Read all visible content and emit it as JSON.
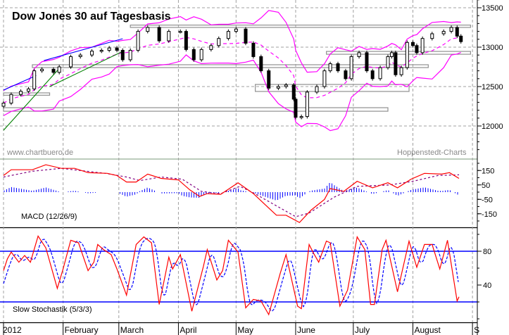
{
  "chart_data": [
    {
      "type": "candlestick",
      "title": "Dow Jones 30 auf Tagesbasis",
      "watermark_left": "www.chartbuero.de",
      "watermark_right": "Hoppenstedt-Charts",
      "year": "2012",
      "x_tick_labels": [
        "2012",
        "February",
        "March",
        "April",
        "May",
        "June",
        "July",
        "August",
        "S"
      ],
      "month_starts": [
        "2012-01-01",
        "2012-02-01",
        "2012-03-01",
        "2012-04-01",
        "2012-05-01",
        "2012-06-01",
        "2012-07-01",
        "2012-08-01",
        "2012-09-01"
      ],
      "y_ticks": [
        12000,
        12500,
        13000,
        13500
      ],
      "y_tick_labels": [
        "12000",
        "12500",
        "13000",
        "13500"
      ],
      "ylim": [
        11600,
        13600
      ],
      "xlim": [
        "2012-01-01",
        "2012-09-03"
      ],
      "grid": true,
      "bollinger_bands": true,
      "colors": {
        "bands": "#ff00ff",
        "uptrend_line": "#0000ff",
        "support_line": "#008000",
        "zones": "#909090",
        "grid": "#a0a0a0"
      },
      "closes": [
        [
          "2012-01-01",
          12290
        ],
        [
          "2012-01-05",
          12400
        ],
        [
          "2012-01-10",
          12440
        ],
        [
          "2012-01-14",
          12470
        ],
        [
          "2012-01-17",
          12700
        ],
        [
          "2012-01-21",
          12720
        ],
        [
          "2012-01-27",
          12680
        ],
        [
          "2012-01-30",
          12750
        ],
        [
          "2012-02-05",
          12880
        ],
        [
          "2012-02-10",
          12900
        ],
        [
          "2012-02-16",
          12950
        ],
        [
          "2012-02-21",
          12960
        ],
        [
          "2012-02-25",
          12990
        ],
        [
          "2012-02-29",
          12960
        ],
        [
          "2012-03-03",
          12840
        ],
        [
          "2012-03-07",
          12960
        ],
        [
          "2012-03-11",
          13200
        ],
        [
          "2012-03-16",
          13250
        ],
        [
          "2012-03-22",
          13080
        ],
        [
          "2012-03-27",
          13200
        ],
        [
          "2012-04-02",
          13200
        ],
        [
          "2012-04-05",
          12970
        ],
        [
          "2012-04-09",
          12840
        ],
        [
          "2012-04-13",
          12970
        ],
        [
          "2012-04-18",
          13020
        ],
        [
          "2012-04-22",
          13110
        ],
        [
          "2012-04-27",
          13200
        ],
        [
          "2012-05-01",
          13230
        ],
        [
          "2012-05-06",
          13050
        ],
        [
          "2012-05-10",
          12880
        ],
        [
          "2012-05-14",
          12700
        ],
        [
          "2012-05-18",
          12480
        ],
        [
          "2012-05-23",
          12500
        ],
        [
          "2012-05-27",
          12520
        ],
        [
          "2012-05-31",
          12340
        ],
        [
          "2012-06-01",
          12110
        ],
        [
          "2012-06-04",
          12120
        ],
        [
          "2012-06-07",
          12430
        ],
        [
          "2012-06-12",
          12500
        ],
        [
          "2012-06-16",
          12700
        ],
        [
          "2012-06-19",
          12790
        ],
        [
          "2012-06-23",
          12700
        ],
        [
          "2012-06-27",
          12600
        ],
        [
          "2012-06-30",
          12880
        ],
        [
          "2012-07-04",
          12930
        ],
        [
          "2012-07-08",
          12700
        ],
        [
          "2012-07-11",
          12600
        ],
        [
          "2012-07-15",
          12740
        ],
        [
          "2012-07-19",
          12880
        ],
        [
          "2012-07-21",
          12930
        ],
        [
          "2012-07-23",
          12650
        ],
        [
          "2012-07-26",
          12740
        ],
        [
          "2012-07-29",
          13060
        ],
        [
          "2012-08-01",
          13020
        ],
        [
          "2012-08-03",
          12930
        ],
        [
          "2012-08-06",
          13110
        ],
        [
          "2012-08-11",
          13170
        ],
        [
          "2012-08-17",
          13200
        ],
        [
          "2012-08-21",
          13250
        ],
        [
          "2012-08-24",
          13140
        ],
        [
          "2012-08-26",
          13070
        ]
      ],
      "trendlines": [
        {
          "color": "blue",
          "from": [
            "2012-01-01",
            12455
          ],
          "to": [
            "2012-01-18",
            12640
          ]
        },
        {
          "color": "blue",
          "from": [
            "2012-01-22",
            12830
          ],
          "to": [
            "2012-03-03",
            13107
          ]
        },
        {
          "color": "green",
          "from": [
            "2012-01-01",
            11945
          ],
          "to": [
            "2012-01-30",
            12730
          ]
        },
        {
          "color": "green",
          "from": [
            "2012-01-25",
            12500
          ],
          "to": [
            "2012-03-03",
            12946
          ]
        }
      ],
      "zones": [
        {
          "from": "2012-03-07",
          "to": "2012-08-31",
          "low": 13250,
          "high": 13280
        },
        {
          "from": "2012-06-17",
          "to": "2012-08-31",
          "low": 12910,
          "high": 12946
        },
        {
          "from": "2012-01-16",
          "to": "2012-08-09",
          "low": 12741,
          "high": 12777
        },
        {
          "from": "2012-05-11",
          "to": "2012-07-30",
          "low": 12438,
          "high": 12527
        },
        {
          "from": "2012-01-01",
          "to": "2012-07-19",
          "low": 12187,
          "high": 12232
        },
        {
          "from": "2012-01-01",
          "to": "2012-01-25",
          "low": 12390,
          "high": 12420
        }
      ]
    },
    {
      "type": "line",
      "label": "MACD (12/26/9)",
      "y_ticks": [
        150,
        50,
        -50,
        -150
      ],
      "y_tick_labels": [
        "150",
        "50",
        "-50",
        "-150"
      ],
      "colors": {
        "macd": "#ff0000",
        "signal": "#800080",
        "histogram": "#0000ff"
      },
      "macd": [
        [
          "2012-01-01",
          115
        ],
        [
          "2012-01-05",
          155
        ],
        [
          "2012-01-16",
          155
        ],
        [
          "2012-01-23",
          190
        ],
        [
          "2012-01-31",
          165
        ],
        [
          "2012-02-07",
          165
        ],
        [
          "2012-02-14",
          135
        ],
        [
          "2012-02-24",
          130
        ],
        [
          "2012-02-29",
          115
        ],
        [
          "2012-03-05",
          70
        ],
        [
          "2012-03-10",
          70
        ],
        [
          "2012-03-16",
          125
        ],
        [
          "2012-03-23",
          95
        ],
        [
          "2012-04-01",
          85
        ],
        [
          "2012-04-07",
          15
        ],
        [
          "2012-04-12",
          -30
        ],
        [
          "2012-04-16",
          -10
        ],
        [
          "2012-04-23",
          -15
        ],
        [
          "2012-05-02",
          65
        ],
        [
          "2012-05-10",
          -10
        ],
        [
          "2012-05-18",
          -110
        ],
        [
          "2012-05-22",
          -160
        ],
        [
          "2012-05-27",
          -160
        ],
        [
          "2012-06-03",
          -210
        ],
        [
          "2012-06-09",
          -125
        ],
        [
          "2012-06-16",
          -50
        ],
        [
          "2012-06-19",
          25
        ],
        [
          "2012-06-26",
          5
        ],
        [
          "2012-07-03",
          75
        ],
        [
          "2012-07-11",
          30
        ],
        [
          "2012-07-19",
          65
        ],
        [
          "2012-07-24",
          30
        ],
        [
          "2012-07-31",
          90
        ],
        [
          "2012-08-07",
          130
        ],
        [
          "2012-08-16",
          125
        ],
        [
          "2012-08-20",
          135
        ],
        [
          "2012-08-25",
          95
        ]
      ],
      "signal": [
        [
          "2012-01-01",
          105
        ],
        [
          "2012-01-16",
          145
        ],
        [
          "2012-01-31",
          165
        ],
        [
          "2012-02-23",
          130
        ],
        [
          "2012-03-05",
          105
        ],
        [
          "2012-03-12",
          80
        ],
        [
          "2012-03-23",
          105
        ],
        [
          "2012-04-03",
          90
        ],
        [
          "2012-04-13",
          5
        ],
        [
          "2012-04-23",
          -10
        ],
        [
          "2012-05-03",
          40
        ],
        [
          "2012-05-10",
          -5
        ],
        [
          "2012-05-22",
          -95
        ],
        [
          "2012-06-01",
          -170
        ],
        [
          "2012-06-08",
          -145
        ],
        [
          "2012-06-21",
          -35
        ],
        [
          "2012-07-03",
          40
        ],
        [
          "2012-07-20",
          50
        ],
        [
          "2012-08-01",
          75
        ],
        [
          "2012-08-14",
          115
        ],
        [
          "2012-08-25",
          120
        ]
      ]
    },
    {
      "type": "line",
      "label": "Slow Stochastik (5/3/3)",
      "y_ticks": [
        80,
        40
      ],
      "y_tick_labels": [
        "80",
        "40"
      ],
      "reference_lines": [
        80,
        20
      ],
      "colors": {
        "k": "#ff0000",
        "d": "#0000ff",
        "reference": "#0000ff"
      },
      "k": [
        [
          "2012-01-01",
          57
        ],
        [
          "2012-01-03",
          71
        ],
        [
          "2012-01-05",
          79
        ],
        [
          "2012-01-09",
          67
        ],
        [
          "2012-01-12",
          75
        ],
        [
          "2012-01-15",
          67
        ],
        [
          "2012-01-19",
          98
        ],
        [
          "2012-01-23",
          84
        ],
        [
          "2012-01-29",
          36
        ],
        [
          "2012-02-01",
          59
        ],
        [
          "2012-02-05",
          93
        ],
        [
          "2012-02-09",
          90
        ],
        [
          "2012-02-14",
          57
        ],
        [
          "2012-02-17",
          67
        ],
        [
          "2012-02-19",
          88
        ],
        [
          "2012-02-22",
          82
        ],
        [
          "2012-02-26",
          76
        ],
        [
          "2012-02-29",
          59
        ],
        [
          "2012-03-05",
          28
        ],
        [
          "2012-03-10",
          88
        ],
        [
          "2012-03-14",
          97
        ],
        [
          "2012-03-18",
          90
        ],
        [
          "2012-03-22",
          17
        ],
        [
          "2012-03-25",
          50
        ],
        [
          "2012-03-27",
          73
        ],
        [
          "2012-03-29",
          59
        ],
        [
          "2012-04-02",
          76
        ],
        [
          "2012-04-08",
          9
        ],
        [
          "2012-04-14",
          62
        ],
        [
          "2012-04-16",
          82
        ],
        [
          "2012-04-21",
          46
        ],
        [
          "2012-04-24",
          57
        ],
        [
          "2012-04-27",
          93
        ],
        [
          "2012-05-02",
          79
        ],
        [
          "2012-05-06",
          13
        ],
        [
          "2012-05-10",
          23
        ],
        [
          "2012-05-14",
          21
        ],
        [
          "2012-05-18",
          5
        ],
        [
          "2012-05-24",
          54
        ],
        [
          "2012-05-27",
          76
        ],
        [
          "2012-06-02",
          15
        ],
        [
          "2012-06-04",
          12
        ],
        [
          "2012-06-08",
          88
        ],
        [
          "2012-06-10",
          79
        ],
        [
          "2012-06-13",
          67
        ],
        [
          "2012-06-17",
          92
        ],
        [
          "2012-06-19",
          90
        ],
        [
          "2012-06-24",
          15
        ],
        [
          "2012-06-28",
          34
        ],
        [
          "2012-07-03",
          97
        ],
        [
          "2012-07-07",
          82
        ],
        [
          "2012-07-10",
          17
        ],
        [
          "2012-07-12",
          17
        ],
        [
          "2012-07-16",
          82
        ],
        [
          "2012-07-18",
          93
        ],
        [
          "2012-07-24",
          32
        ],
        [
          "2012-07-30",
          92
        ],
        [
          "2012-08-03",
          61
        ],
        [
          "2012-08-07",
          88
        ],
        [
          "2012-08-11",
          88
        ],
        [
          "2012-08-15",
          59
        ],
        [
          "2012-08-19",
          93
        ],
        [
          "2012-08-24",
          21
        ],
        [
          "2012-08-25",
          26
        ]
      ]
    }
  ]
}
